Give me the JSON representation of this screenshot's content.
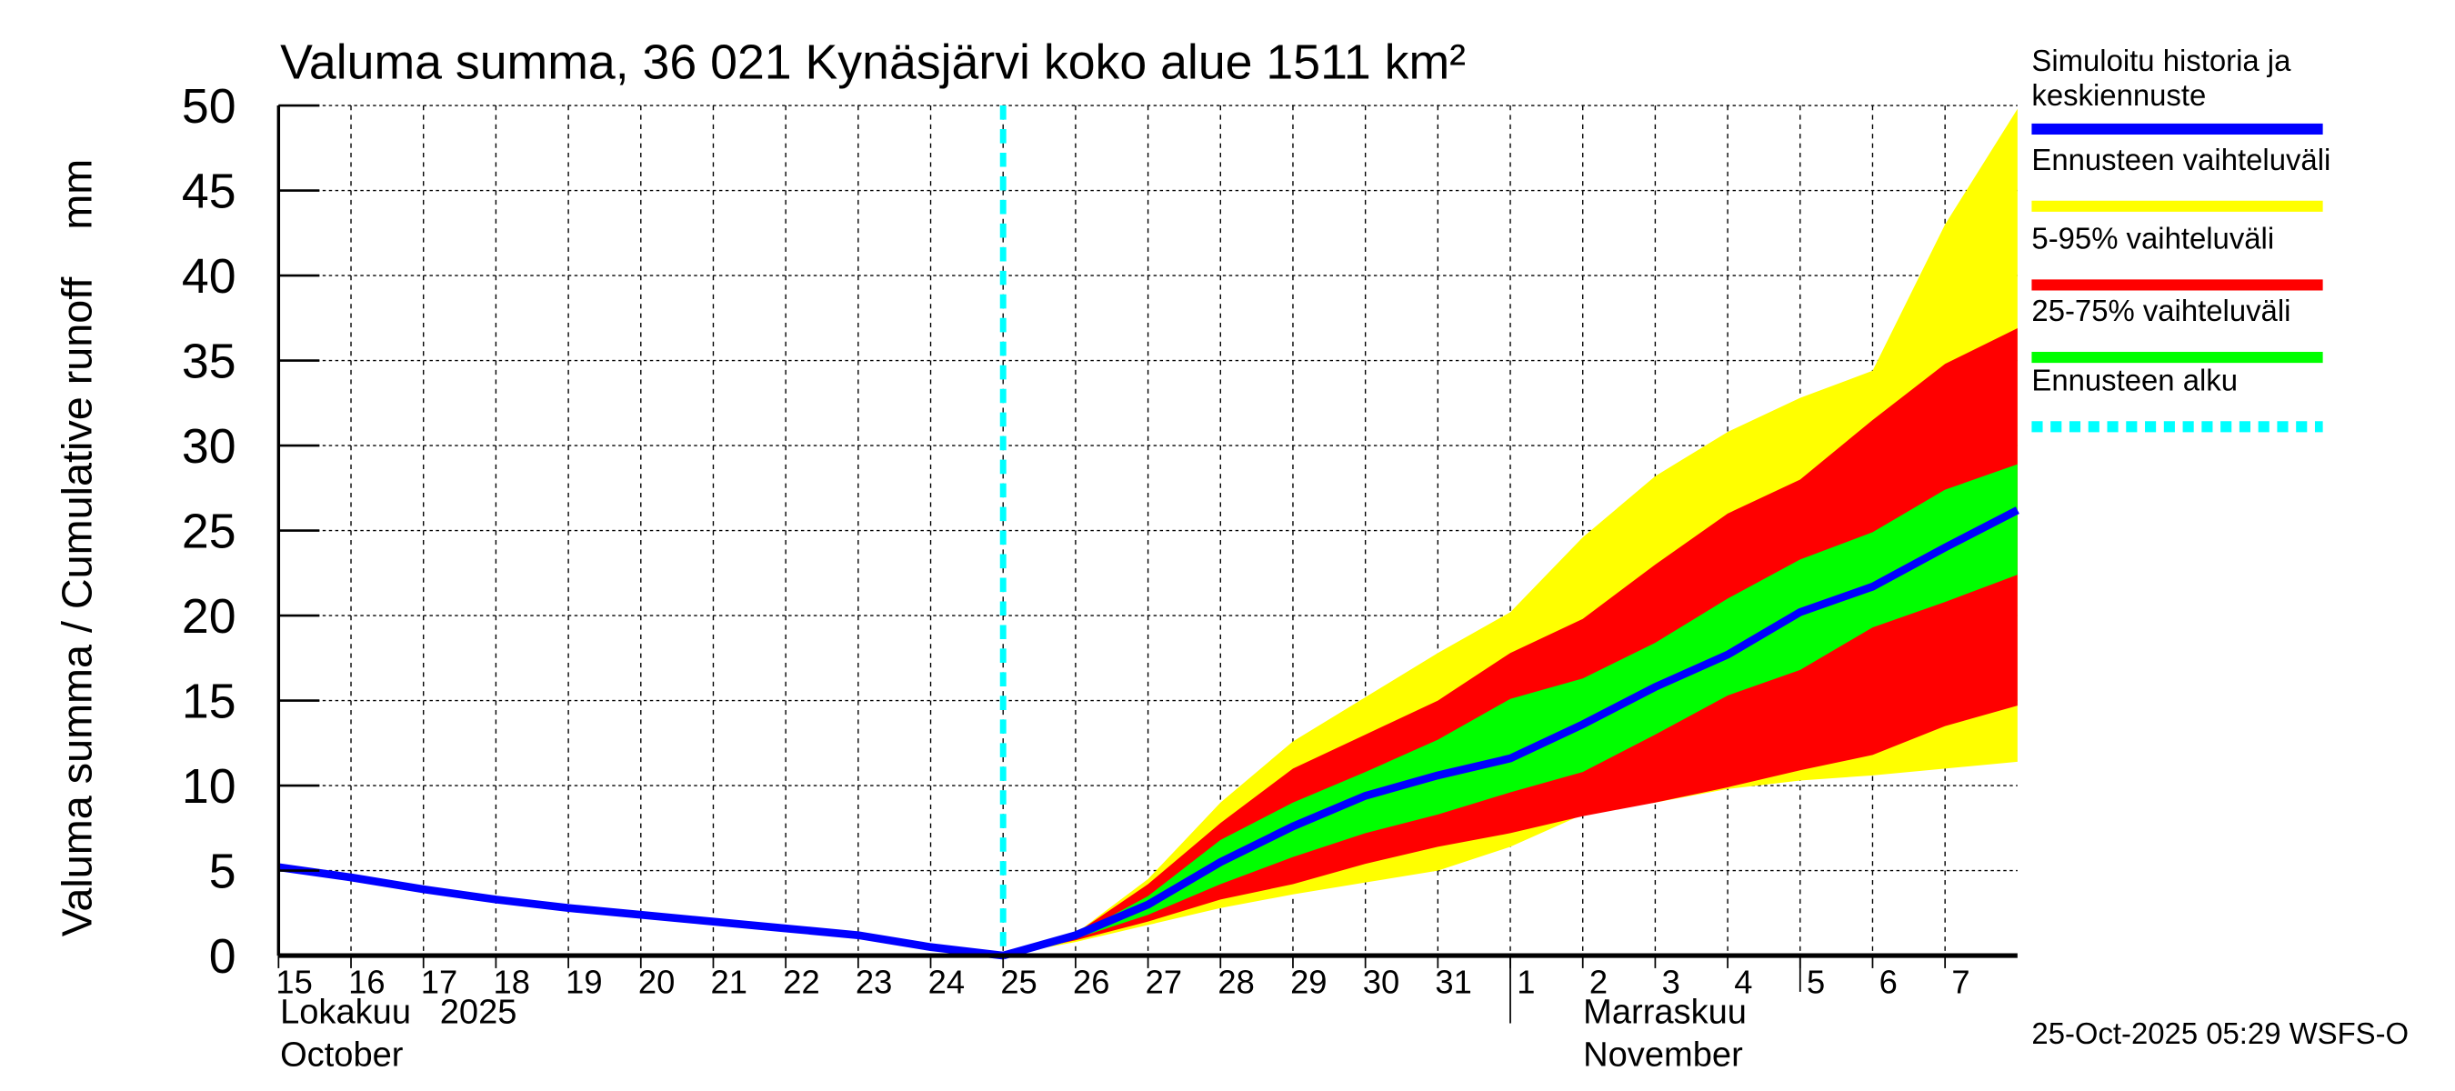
{
  "chart_data": {
    "type": "area",
    "title": "Valuma summa, 36 021 Kynäsjärvi koko alue 1511 km²",
    "ylabel": "Valuma summa / Cumulative runoff    mm",
    "ylim": [
      0,
      50
    ],
    "yticks": [
      0,
      5,
      10,
      15,
      20,
      25,
      30,
      35,
      40,
      45,
      50
    ],
    "grid": true,
    "x_day_labels": [
      "15",
      "16",
      "17",
      "18",
      "19",
      "20",
      "21",
      "22",
      "23",
      "24",
      "25",
      "26",
      "27",
      "28",
      "29",
      "30",
      "31",
      "1",
      "2",
      "3",
      "4",
      "5",
      "6",
      "7"
    ],
    "month_labels": {
      "october_fi": "Lokakuu   2025",
      "october_en": "October",
      "november_fi": "Marraskuu",
      "november_en": "November"
    },
    "forecast_start_index": 10,
    "history": {
      "name": "Simuloitu historia ja keskiennuste",
      "x_index": [
        0,
        1,
        2,
        3,
        4,
        5,
        6,
        7,
        8,
        9,
        10
      ],
      "values": [
        5.2,
        4.6,
        3.9,
        3.3,
        2.8,
        2.4,
        2.0,
        1.6,
        1.2,
        0.5,
        0.0
      ]
    },
    "forecast_x_index": [
      10,
      11,
      12,
      13,
      14,
      15,
      16,
      17,
      18,
      19,
      20,
      21,
      22,
      23,
      24
    ],
    "median": [
      0.0,
      1.2,
      3.0,
      5.5,
      7.6,
      9.4,
      10.6,
      11.6,
      13.6,
      15.8,
      17.7,
      20.2,
      21.7,
      24.0,
      26.2
    ],
    "range_max": [
      0.0,
      1.3,
      4.5,
      9.0,
      12.6,
      15.2,
      17.8,
      20.2,
      24.6,
      28.2,
      30.8,
      32.8,
      34.4,
      43.0,
      49.8
    ],
    "range_min": [
      0.0,
      0.8,
      1.8,
      2.8,
      3.6,
      4.3,
      5.0,
      6.4,
      8.3,
      9.0,
      9.8,
      10.3,
      10.6,
      11.0,
      11.4
    ],
    "p95": [
      0.0,
      1.3,
      4.2,
      7.8,
      11.0,
      13.0,
      15.0,
      17.8,
      19.8,
      23.0,
      26.0,
      28.0,
      31.5,
      34.8,
      36.9
    ],
    "p5": [
      0.0,
      0.9,
      2.0,
      3.3,
      4.2,
      5.4,
      6.4,
      7.2,
      8.2,
      9.0,
      9.9,
      10.9,
      11.8,
      13.5,
      14.7
    ],
    "p75": [
      0.0,
      1.2,
      3.5,
      6.8,
      9.0,
      10.8,
      12.7,
      15.1,
      16.3,
      18.4,
      21.0,
      23.3,
      24.9,
      27.4,
      28.9
    ],
    "p25": [
      0.0,
      1.0,
      2.4,
      4.2,
      5.8,
      7.2,
      8.3,
      9.6,
      10.8,
      13.0,
      15.3,
      16.8,
      19.3,
      20.8,
      22.4
    ],
    "legend": {
      "placement": "right",
      "items": [
        {
          "label_line1": "Simuloitu historia ja",
          "label_line2": "keskiennuste",
          "color": "#0000ff"
        },
        {
          "label_line1": "Ennusteen vaihteluväli",
          "label_line2": "",
          "color": "#ffff00"
        },
        {
          "label_line1": "5-95% vaihteluväli",
          "label_line2": "",
          "color": "#ff0000"
        },
        {
          "label_line1": "25-75% vaihteluväli",
          "label_line2": "",
          "color": "#00ff00"
        },
        {
          "label_line1": "Ennusteen alku",
          "label_line2": "",
          "color": "#00ffff"
        }
      ]
    },
    "footer": "25-Oct-2025 05:29 WSFS-O"
  }
}
